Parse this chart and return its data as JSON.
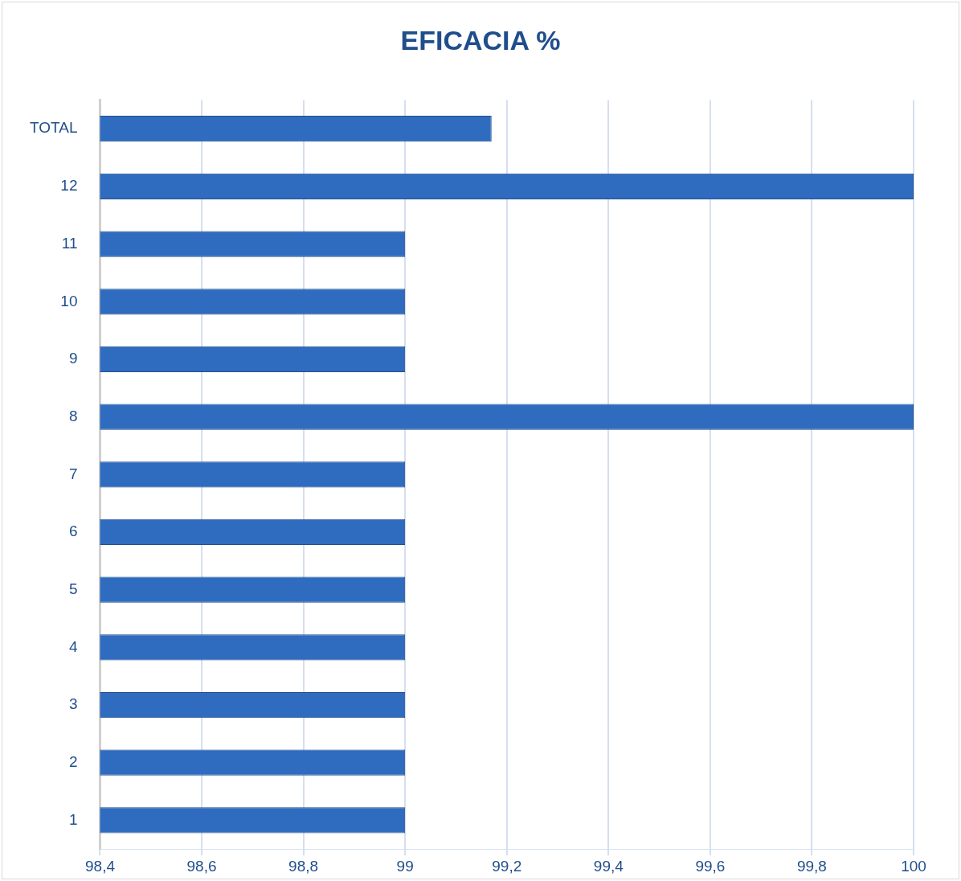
{
  "chart_data": {
    "type": "bar",
    "orientation": "horizontal",
    "title": "EFICACIA %",
    "categories": [
      "TOTAL",
      "12",
      "11",
      "10",
      "9",
      "8",
      "7",
      "6",
      "5",
      "4",
      "3",
      "2",
      "1"
    ],
    "values": [
      99.17,
      100,
      99,
      99,
      99,
      100,
      99,
      99,
      99,
      99,
      99,
      99,
      99
    ],
    "color": "#2f6cbf",
    "xlim": [
      98.4,
      100
    ],
    "xticks": [
      {
        "value": 98.4,
        "label": "98,4"
      },
      {
        "value": 98.6,
        "label": "98,6"
      },
      {
        "value": 98.8,
        "label": "98,8"
      },
      99,
      {
        "value": 99.2,
        "label": "99,2"
      },
      {
        "value": 99.4,
        "label": "99,4"
      },
      {
        "value": 99.6,
        "label": "99,6"
      },
      {
        "value": 99.8,
        "label": "99,8"
      },
      100
    ],
    "grid": "x"
  }
}
